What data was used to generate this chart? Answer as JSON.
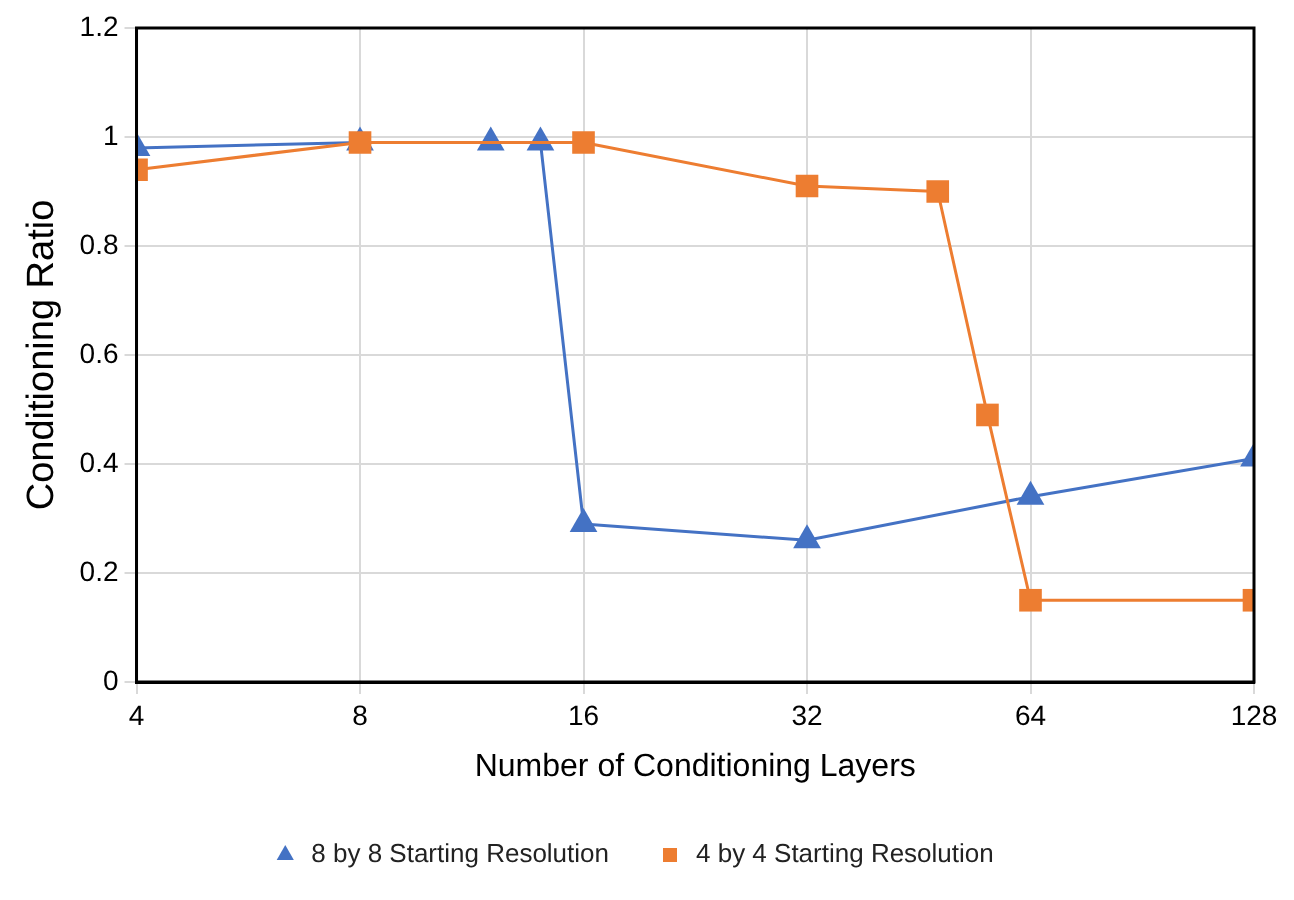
{
  "chart_data": {
    "type": "line",
    "xlabel": "Number of Conditioning Layers",
    "ylabel": "Conditioning Ratio",
    "log": "x",
    "grid": true,
    "legend": "bottom",
    "line_style": "solid",
    "xlim": [
      4,
      128
    ],
    "xticks": [
      4,
      8,
      16,
      32,
      64,
      128
    ],
    "ylim": [
      0,
      1.2
    ],
    "yticks": [
      0,
      0.2,
      0.4,
      0.6,
      0.8,
      1,
      1.2
    ],
    "series": [
      {
        "name": "8 by 8 Starting Resolution",
        "color": "#4472c4",
        "marker": "triangle",
        "x": [
          4,
          8,
          12,
          14,
          16,
          32,
          64,
          128
        ],
        "values": [
          0.98,
          0.99,
          0.99,
          0.99,
          0.29,
          0.26,
          0.34,
          0.41
        ]
      },
      {
        "name": "4 by 4 Starting Resolution",
        "color": "#ed7d31",
        "marker": "square",
        "x": [
          4,
          8,
          16,
          32,
          48,
          56,
          64,
          128
        ],
        "values": [
          0.94,
          0.99,
          0.99,
          0.91,
          0.9,
          0.49,
          0.15,
          0.15
        ]
      }
    ]
  }
}
